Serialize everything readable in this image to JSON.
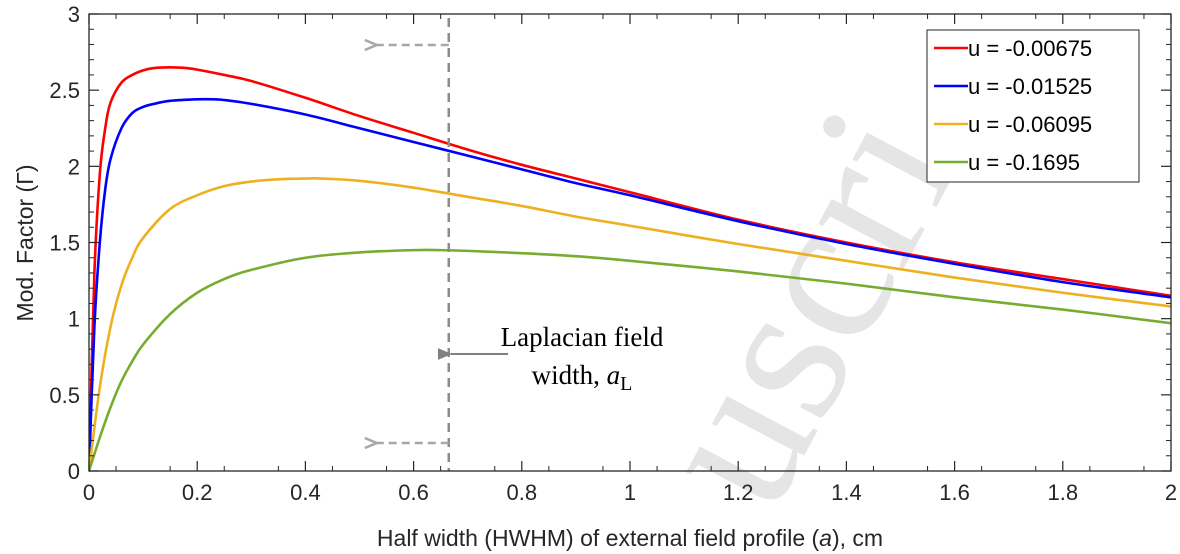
{
  "chart_data": {
    "type": "line",
    "title": "",
    "xlabel": "Half width (HWHM) of external field profile (a), cm",
    "xlabel_parts": {
      "before": "Half width (HWHM) of external field profile (",
      "italic": "a",
      "after": "), cm"
    },
    "ylabel": "Mod. Factor (Γ)",
    "xlim": [
      0,
      2
    ],
    "ylim": [
      0,
      3
    ],
    "xticks": [
      0,
      0.2,
      0.4,
      0.6,
      0.8,
      1,
      1.2,
      1.4,
      1.6,
      1.8,
      2
    ],
    "xtick_labels": [
      "0",
      "0.2",
      "0.4",
      "0.6",
      "0.8",
      "1",
      "1.2",
      "1.4",
      "1.6",
      "1.8",
      "2"
    ],
    "yticks": [
      0,
      0.5,
      1,
      1.5,
      2,
      2.5,
      3
    ],
    "ytick_labels": [
      "0",
      "0.5",
      "1",
      "1.5",
      "2",
      "2.5",
      "3"
    ],
    "grid": false,
    "legend_position": "top-right",
    "series": [
      {
        "name": "u = -0.00675",
        "color": "#ff0000",
        "x": [
          0,
          0.01,
          0.02,
          0.03,
          0.04,
          0.06,
          0.08,
          0.1,
          0.12,
          0.15,
          0.18,
          0.2,
          0.25,
          0.3,
          0.4,
          0.5,
          0.6,
          0.7,
          0.8,
          0.9,
          1.0,
          1.2,
          1.4,
          1.6,
          1.8,
          2.0
        ],
        "y": [
          0,
          1.3,
          1.95,
          2.25,
          2.42,
          2.55,
          2.6,
          2.63,
          2.645,
          2.65,
          2.645,
          2.635,
          2.6,
          2.56,
          2.45,
          2.33,
          2.22,
          2.11,
          2.01,
          1.92,
          1.83,
          1.65,
          1.5,
          1.37,
          1.26,
          1.15
        ]
      },
      {
        "name": "u = -0.01525",
        "color": "#0000ff",
        "x": [
          0,
          0.01,
          0.02,
          0.03,
          0.04,
          0.06,
          0.08,
          0.1,
          0.12,
          0.15,
          0.2,
          0.23,
          0.25,
          0.3,
          0.4,
          0.5,
          0.6,
          0.7,
          0.8,
          0.9,
          1.0,
          1.2,
          1.4,
          1.6,
          1.8,
          2.0
        ],
        "y": [
          0,
          0.95,
          1.5,
          1.85,
          2.05,
          2.25,
          2.35,
          2.39,
          2.41,
          2.43,
          2.44,
          2.44,
          2.435,
          2.41,
          2.34,
          2.25,
          2.16,
          2.07,
          1.98,
          1.89,
          1.81,
          1.64,
          1.49,
          1.36,
          1.24,
          1.14
        ]
      },
      {
        "name": "u = -0.06095",
        "color": "#edb120",
        "x": [
          0,
          0.02,
          0.04,
          0.06,
          0.08,
          0.1,
          0.15,
          0.2,
          0.25,
          0.3,
          0.35,
          0.4,
          0.43,
          0.5,
          0.6,
          0.7,
          0.8,
          0.9,
          1.0,
          1.2,
          1.4,
          1.6,
          1.8,
          2.0
        ],
        "y": [
          0,
          0.55,
          0.95,
          1.22,
          1.4,
          1.53,
          1.72,
          1.81,
          1.87,
          1.9,
          1.915,
          1.92,
          1.92,
          1.905,
          1.86,
          1.8,
          1.74,
          1.67,
          1.61,
          1.49,
          1.38,
          1.27,
          1.17,
          1.08
        ]
      },
      {
        "name": "u = -0.1695",
        "color": "#77ac30",
        "x": [
          0,
          0.02,
          0.04,
          0.06,
          0.08,
          0.1,
          0.15,
          0.2,
          0.25,
          0.3,
          0.4,
          0.5,
          0.6,
          0.65,
          0.7,
          0.8,
          0.9,
          1.0,
          1.2,
          1.4,
          1.6,
          1.8,
          2.0
        ],
        "y": [
          0,
          0.22,
          0.42,
          0.59,
          0.72,
          0.83,
          1.03,
          1.17,
          1.26,
          1.32,
          1.4,
          1.435,
          1.45,
          1.45,
          1.445,
          1.43,
          1.41,
          1.38,
          1.31,
          1.23,
          1.14,
          1.06,
          0.97
        ]
      }
    ],
    "annotation": {
      "x_line": 0.665,
      "line1": "Laplacian field",
      "line2": "width, ",
      "symbol": "a",
      "subscript": "L"
    },
    "watermark": "uscri"
  }
}
